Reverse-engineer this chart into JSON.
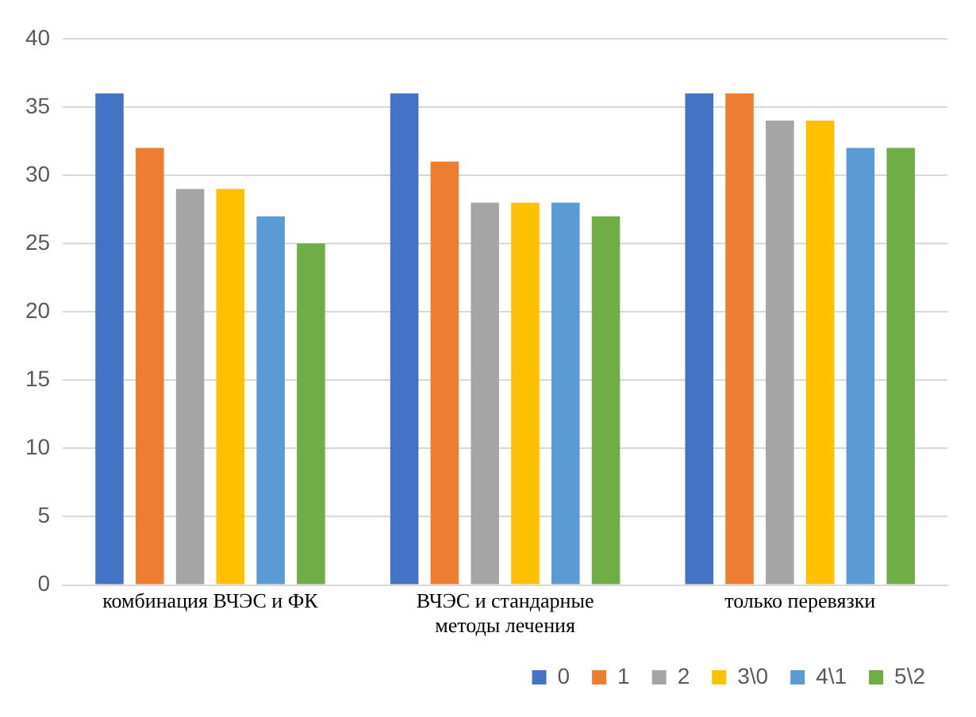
{
  "chart_data": {
    "type": "bar",
    "categories": [
      "комбинация ВЧЭС и ФК",
      "ВЧЭС и стандарные методы лечения",
      "только перевязки"
    ],
    "series": [
      {
        "name": "0",
        "color": "#4472c4",
        "values": [
          36,
          36,
          36
        ]
      },
      {
        "name": "1",
        "color": "#ed7d31",
        "values": [
          32,
          31,
          36
        ]
      },
      {
        "name": "2",
        "color": "#a5a5a5",
        "values": [
          29,
          28,
          34
        ]
      },
      {
        "name": "3\\0",
        "color": "#ffc000",
        "values": [
          29,
          28,
          34
        ]
      },
      {
        "name": "4\\1",
        "color": "#5b9bd5",
        "values": [
          27,
          28,
          32
        ]
      },
      {
        "name": "5\\2",
        "color": "#70ad47",
        "values": [
          25,
          27,
          32
        ]
      }
    ],
    "ylim": [
      0,
      40
    ],
    "yticks": [
      0,
      5,
      10,
      15,
      20,
      25,
      30,
      35,
      40
    ],
    "grid": "y",
    "legend": "bottom right"
  }
}
